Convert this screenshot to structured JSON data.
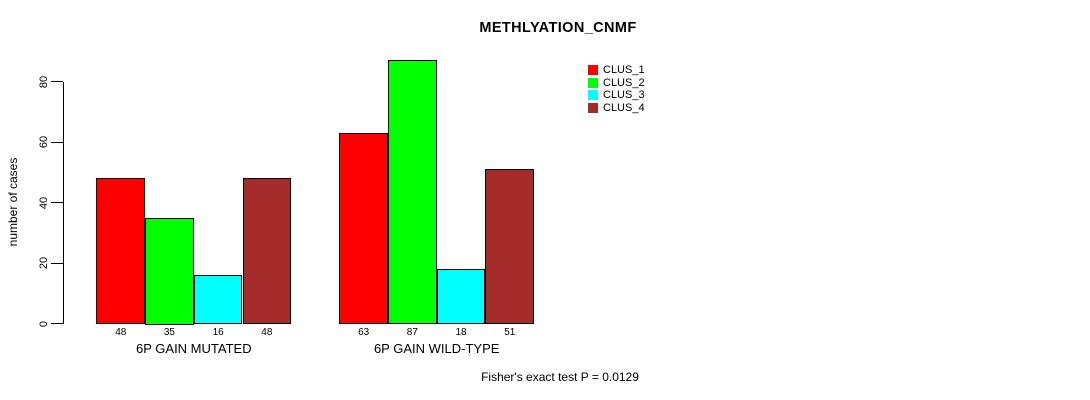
{
  "chart_data": {
    "type": "bar",
    "title": "METHLYATION_CNMF",
    "ylabel": "number of cases",
    "xlabel": "",
    "ylim": [
      0,
      80
    ],
    "yticks": [
      0,
      20,
      40,
      60,
      80
    ],
    "categories": [
      "6P GAIN MUTATED",
      "6P GAIN WILD-TYPE"
    ],
    "series": [
      {
        "name": "CLUS_1",
        "color": "#ff0000",
        "values": [
          48,
          63
        ]
      },
      {
        "name": "CLUS_2",
        "color": "#00ff00",
        "values": [
          35,
          87
        ]
      },
      {
        "name": "CLUS_3",
        "color": "#00ffff",
        "values": [
          16,
          18
        ]
      },
      {
        "name": "CLUS_4",
        "color": "#a52a2a",
        "values": [
          48,
          51
        ]
      }
    ],
    "bar_value_labels": [
      [
        48,
        35,
        16,
        48
      ],
      [
        63,
        87,
        18,
        51
      ]
    ],
    "legend": {
      "position": "top-right",
      "entries": [
        "CLUS_1",
        "CLUS_2",
        "CLUS_3",
        "CLUS_4"
      ]
    },
    "grid": false,
    "footnote": "Fisher's exact test P = 0.0129",
    "background_color": "#ffffff",
    "text_color": "#000000"
  }
}
